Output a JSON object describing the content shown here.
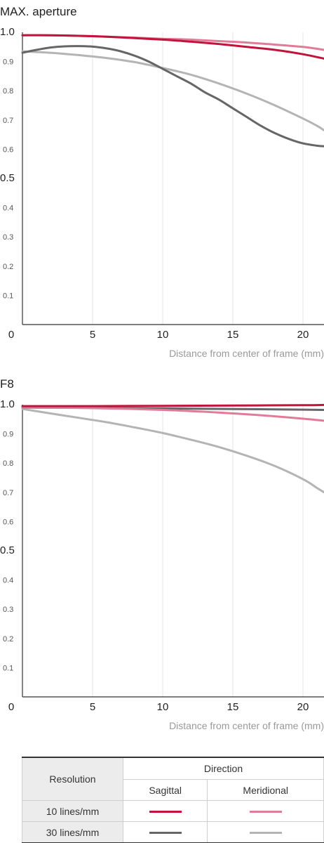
{
  "chart_data": [
    {
      "type": "line",
      "title": "MAX. aperture",
      "xlabel": "Distance from center of frame (mm)",
      "ylabel": "",
      "xlim": [
        0,
        21.5
      ],
      "ylim": [
        0,
        1.0
      ],
      "x_ticks": [
        0,
        5,
        10,
        15,
        20
      ],
      "x_tick_labels": [
        "0",
        "5",
        "10",
        "15",
        "20"
      ],
      "y_ticks": [
        0.1,
        0.2,
        0.3,
        0.4,
        0.5,
        0.6,
        0.7,
        0.8,
        0.9,
        1.0
      ],
      "y_tick_labels": [
        "0.1",
        "0.2",
        "0.3",
        "0.4",
        "0.5",
        "0.6",
        "0.7",
        "0.8",
        "0.9",
        "1.0"
      ],
      "grid": "vertical",
      "series": [
        {
          "key": "s10",
          "color": "#c0143c",
          "x": [
            0,
            2,
            4,
            6,
            8,
            10,
            12,
            14,
            16,
            18,
            20,
            21.5
          ],
          "y": [
            0.99,
            0.99,
            0.988,
            0.985,
            0.98,
            0.975,
            0.968,
            0.96,
            0.95,
            0.94,
            0.925,
            0.91
          ]
        },
        {
          "key": "m10",
          "color": "#e07c98",
          "x": [
            0,
            2,
            4,
            6,
            8,
            10,
            12,
            14,
            16,
            18,
            20,
            21.5
          ],
          "y": [
            0.99,
            0.99,
            0.988,
            0.985,
            0.982,
            0.978,
            0.975,
            0.97,
            0.965,
            0.958,
            0.95,
            0.94
          ]
        },
        {
          "key": "s30",
          "color": "#666666",
          "x": [
            0,
            1,
            2,
            3,
            4,
            5,
            6,
            7,
            8,
            9,
            10,
            11,
            12,
            13,
            14,
            15,
            16,
            17,
            18,
            19,
            20,
            21,
            21.5
          ],
          "y": [
            0.93,
            0.94,
            0.948,
            0.952,
            0.953,
            0.951,
            0.945,
            0.935,
            0.92,
            0.9,
            0.875,
            0.85,
            0.825,
            0.795,
            0.77,
            0.74,
            0.71,
            0.68,
            0.655,
            0.635,
            0.62,
            0.612,
            0.61
          ]
        },
        {
          "key": "m30",
          "color": "#b4b4b4",
          "x": [
            0,
            2,
            4,
            6,
            8,
            10,
            12,
            14,
            16,
            18,
            20,
            21,
            21.5
          ],
          "y": [
            0.935,
            0.93,
            0.922,
            0.912,
            0.898,
            0.878,
            0.855,
            0.825,
            0.79,
            0.75,
            0.705,
            0.68,
            0.665
          ]
        }
      ]
    },
    {
      "type": "line",
      "title": "F8",
      "xlabel": "Distance from center of frame (mm)",
      "ylabel": "",
      "xlim": [
        0,
        21.5
      ],
      "ylim": [
        0,
        1.0
      ],
      "x_ticks": [
        0,
        5,
        10,
        15,
        20
      ],
      "x_tick_labels": [
        "0",
        "5",
        "10",
        "15",
        "20"
      ],
      "y_ticks": [
        0.1,
        0.2,
        0.3,
        0.4,
        0.5,
        0.6,
        0.7,
        0.8,
        0.9,
        1.0
      ],
      "y_tick_labels": [
        "0.1",
        "0.2",
        "0.3",
        "0.4",
        "0.5",
        "0.6",
        "0.7",
        "0.8",
        "0.9",
        "1.0"
      ],
      "grid": "vertical",
      "series": [
        {
          "key": "s10",
          "color": "#c0143c",
          "x": [
            0,
            5,
            10,
            15,
            20,
            21.5
          ],
          "y": [
            0.995,
            0.995,
            0.996,
            0.997,
            0.998,
            0.999
          ]
        },
        {
          "key": "m10",
          "color": "#e07c98",
          "x": [
            0,
            2,
            4,
            6,
            8,
            10,
            12,
            14,
            16,
            18,
            20,
            21.5
          ],
          "y": [
            0.99,
            0.99,
            0.989,
            0.987,
            0.985,
            0.982,
            0.978,
            0.973,
            0.967,
            0.96,
            0.952,
            0.945
          ]
        },
        {
          "key": "s30",
          "color": "#666666",
          "x": [
            0,
            5,
            10,
            15,
            20,
            21.5
          ],
          "y": [
            0.99,
            0.989,
            0.987,
            0.985,
            0.983,
            0.982
          ]
        },
        {
          "key": "m30",
          "color": "#b4b4b4",
          "x": [
            0,
            2,
            4,
            6,
            8,
            10,
            12,
            14,
            16,
            18,
            20,
            21,
            21.5
          ],
          "y": [
            0.985,
            0.97,
            0.955,
            0.94,
            0.922,
            0.903,
            0.88,
            0.855,
            0.825,
            0.79,
            0.745,
            0.715,
            0.7
          ]
        }
      ]
    }
  ],
  "legend": {
    "resolution_label": "Resolution",
    "direction_label": "Direction",
    "sagittal_label": "Sagittal",
    "meridional_label": "Meridional",
    "rows": [
      {
        "label": "10 lines/mm",
        "sagittal_color": "#c0143c",
        "meridional_color": "#e07c98"
      },
      {
        "label": "30 lines/mm",
        "sagittal_color": "#666666",
        "meridional_color": "#b4b4b4"
      }
    ]
  }
}
